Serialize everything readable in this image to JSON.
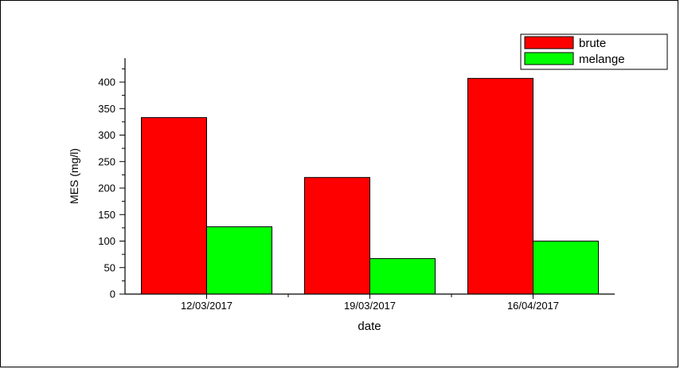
{
  "chart_data": {
    "type": "bar",
    "title": "",
    "xlabel": "date",
    "ylabel": "MES (mg/l)",
    "categories": [
      "12/03/2017",
      "19/03/2017",
      "16/04/2017"
    ],
    "series": [
      {
        "name": "brute",
        "values": [
          333,
          220,
          407
        ],
        "color": "#ff0000"
      },
      {
        "name": "melange",
        "values": [
          127,
          67,
          100
        ],
        "color": "#00ff00"
      }
    ],
    "ylim": [
      0,
      430
    ],
    "yticks": [
      0,
      50,
      100,
      150,
      200,
      250,
      300,
      350,
      400
    ],
    "grid": false,
    "legend": "top-right"
  }
}
